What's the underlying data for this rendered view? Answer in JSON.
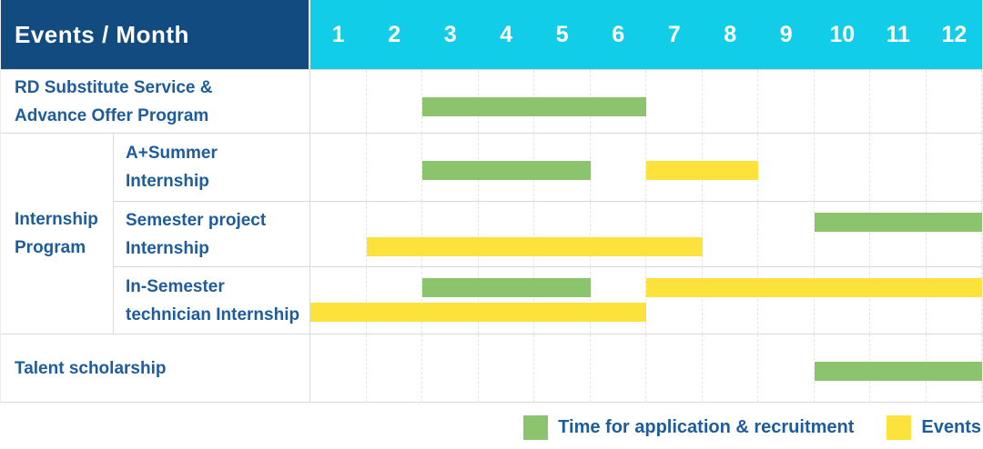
{
  "header": {
    "title": "Events / Month",
    "months": [
      "1",
      "2",
      "3",
      "4",
      "5",
      "6",
      "7",
      "8",
      "9",
      "10",
      "11",
      "12"
    ]
  },
  "colors": {
    "navy": "#114b80",
    "cyan": "#12cde8",
    "green": "#8bc46c",
    "yellow": "#fde23c",
    "text": "#1e5c9b"
  },
  "rows": {
    "rd": {
      "label": [
        "RD Substitute Service &",
        "Advance Offer Program"
      ],
      "bars": [
        {
          "type": "application",
          "from": 3,
          "to": 7,
          "line": "single"
        }
      ]
    },
    "group_label": [
      "Internship",
      "Program"
    ],
    "a_summer": {
      "label": [
        "A+Summer",
        "Internship"
      ],
      "bars": [
        {
          "type": "application",
          "from": 3,
          "to": 6,
          "line": "single"
        },
        {
          "type": "event",
          "from": 7,
          "to": 9,
          "line": "single"
        }
      ]
    },
    "semester_project": {
      "label": [
        "Semester project",
        "Internship"
      ],
      "bars": [
        {
          "type": "application",
          "from": 10,
          "to": 13,
          "line": "top"
        },
        {
          "type": "event",
          "from": 2,
          "to": 8,
          "line": "bottom"
        }
      ]
    },
    "in_semester": {
      "label": [
        "In-Semester",
        "technician Internship"
      ],
      "bars": [
        {
          "type": "application",
          "from": 3,
          "to": 6,
          "line": "top"
        },
        {
          "type": "event",
          "from": 7,
          "to": 13,
          "line": "top"
        },
        {
          "type": "event",
          "from": 1,
          "to": 7,
          "line": "bottom"
        }
      ]
    },
    "talent": {
      "label": [
        "Talent scholarship"
      ],
      "bars": [
        {
          "type": "application",
          "from": 10,
          "to": 13,
          "line": "single"
        }
      ]
    }
  },
  "legend": {
    "items": [
      {
        "type": "application",
        "label": "Time for application & recruitment"
      },
      {
        "type": "event",
        "label": "Events"
      }
    ]
  },
  "chart_data": {
    "type": "gantt",
    "title": "Events / Month",
    "xlabel": "Month",
    "x_ticks": [
      1,
      2,
      3,
      4,
      5,
      6,
      7,
      8,
      9,
      10,
      11,
      12
    ],
    "xlim": [
      1,
      12
    ],
    "grid": true,
    "legend_position": "bottom-right",
    "legend": [
      "Time for application & recruitment",
      "Events"
    ],
    "series": [
      {
        "task": "RD Substitute Service & Advance Offer Program",
        "group": null,
        "bars": [
          {
            "category": "Time for application & recruitment",
            "start_month": 3,
            "end_month": 6
          }
        ]
      },
      {
        "task": "A+Summer Internship",
        "group": "Internship Program",
        "bars": [
          {
            "category": "Time for application & recruitment",
            "start_month": 3,
            "end_month": 5
          },
          {
            "category": "Events",
            "start_month": 7,
            "end_month": 8
          }
        ]
      },
      {
        "task": "Semester project Internship",
        "group": "Internship Program",
        "bars": [
          {
            "category": "Time for application & recruitment",
            "start_month": 10,
            "end_month": 12
          },
          {
            "category": "Events",
            "start_month": 2,
            "end_month": 7
          }
        ]
      },
      {
        "task": "In-Semester technician Internship",
        "group": "Internship Program",
        "bars": [
          {
            "category": "Time for application & recruitment",
            "start_month": 3,
            "end_month": 5
          },
          {
            "category": "Events",
            "start_month": 7,
            "end_month": 12
          },
          {
            "category": "Events",
            "start_month": 1,
            "end_month": 6
          }
        ]
      },
      {
        "task": "Talent scholarship",
        "group": null,
        "bars": [
          {
            "category": "Time for application & recruitment",
            "start_month": 10,
            "end_month": 12
          }
        ]
      }
    ]
  }
}
